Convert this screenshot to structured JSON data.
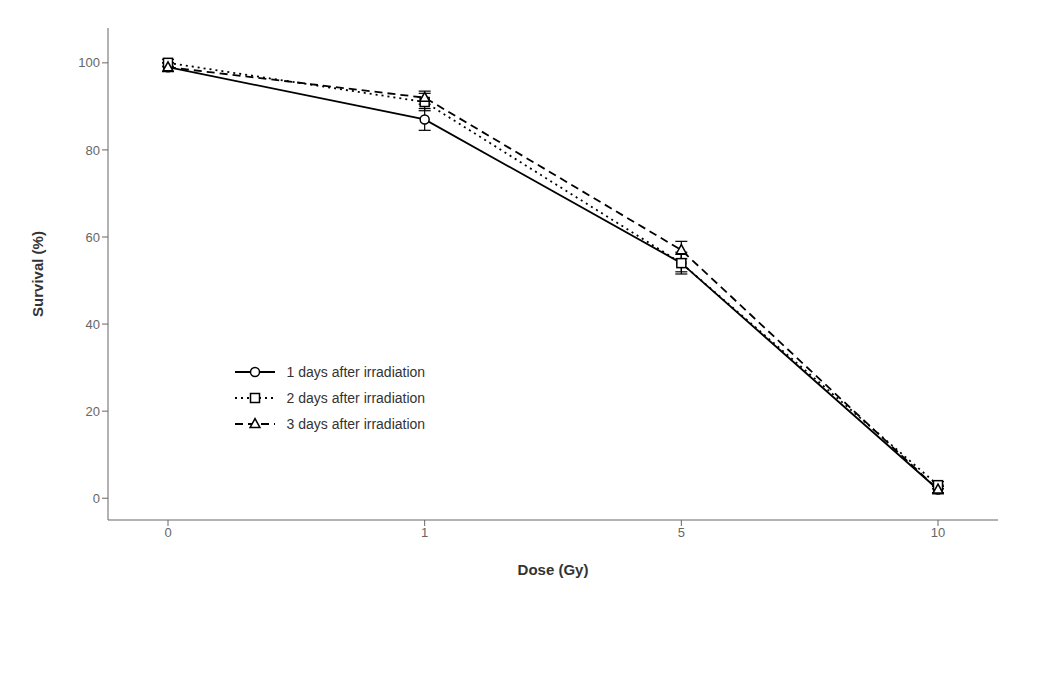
{
  "chart_data": {
    "type": "line",
    "xlabel": "Dose (Gy)",
    "ylabel": "Survival (%)",
    "categories": [
      "0",
      "1",
      "5",
      "10"
    ],
    "series": [
      {
        "name": "1 days after irradiation",
        "values": [
          99,
          87,
          54,
          2
        ],
        "errors": [
          1.0,
          2.5,
          2.5,
          1.0
        ],
        "color": "#000000",
        "marker": "circle",
        "line_style": "solid"
      },
      {
        "name": "2 days after irradiation",
        "values": [
          100,
          91,
          54,
          3
        ],
        "errors": [
          0.8,
          2.0,
          2.0,
          0.8
        ],
        "color": "#000000",
        "marker": "square",
        "line_style": "dotted"
      },
      {
        "name": "3 days after irradiation",
        "values": [
          99,
          92,
          57,
          2
        ],
        "errors": [
          1.0,
          1.5,
          2.0,
          0.7
        ],
        "color": "#000000",
        "marker": "triangle",
        "line_style": "dashed"
      }
    ],
    "ylim": [
      -5,
      108
    ],
    "yticks": [
      0,
      20,
      40,
      60,
      80,
      100
    ],
    "grid": false,
    "legend": "center left"
  }
}
